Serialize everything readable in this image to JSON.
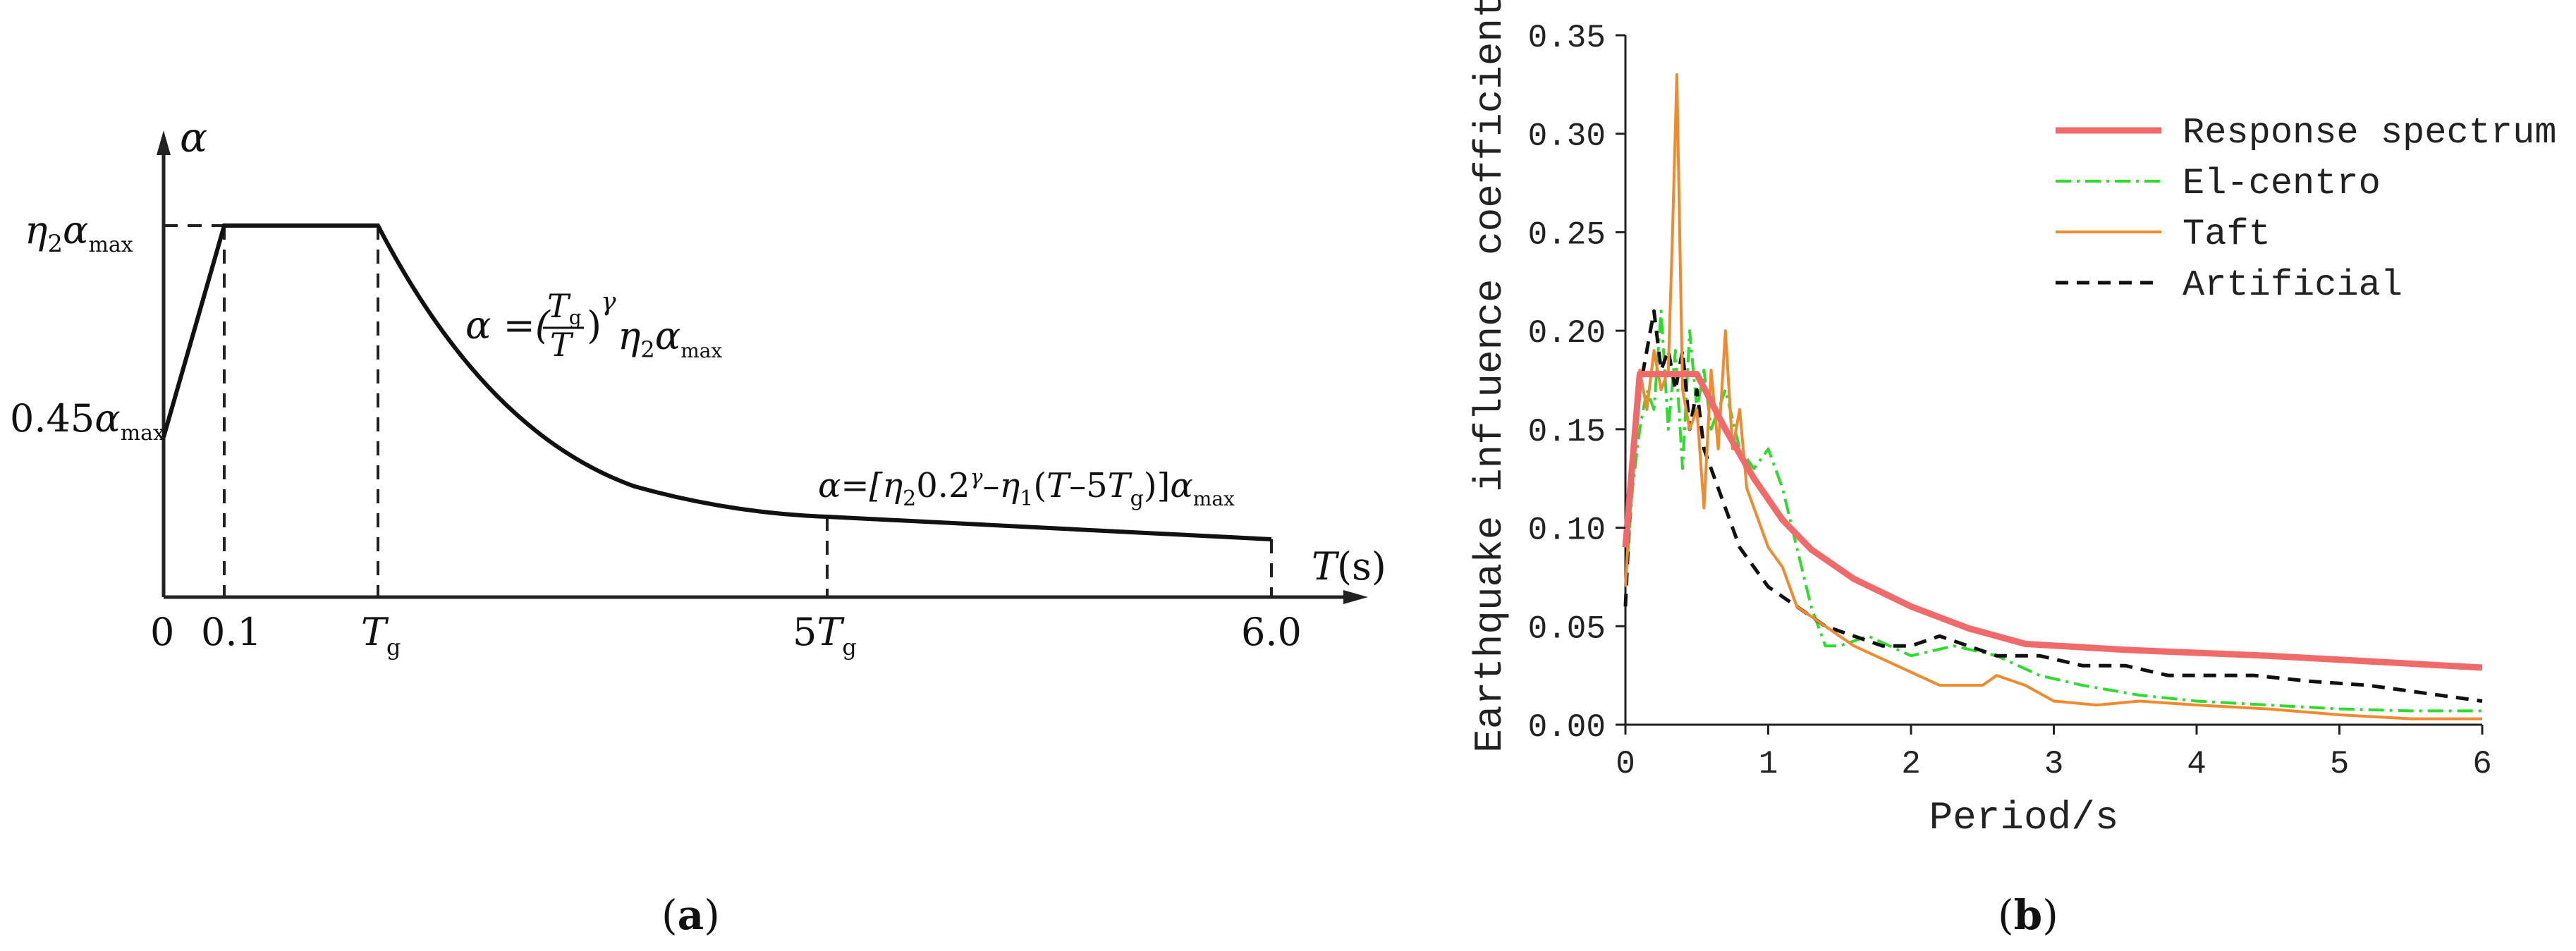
{
  "colors": {
    "response_spectrum": "#f06a6a",
    "el_centro": "#2edc2e",
    "taft": "#f08a2c",
    "artificial": "#111111",
    "axis": "#222222"
  },
  "panel_a": {
    "caption_open": "(",
    "caption_letter": "a",
    "caption_close": ")",
    "alpha_label": "α",
    "t_axis_label_T": "T",
    "t_axis_label_unit": "(s)",
    "y_ticks": {
      "top_eta": "η",
      "top_sub": "2",
      "top_alpha": "α",
      "top_alpha_sub": "max",
      "low_coef": "0.45",
      "low_alpha": "α",
      "low_alpha_sub": "max"
    },
    "x_ticks": {
      "zero": "0",
      "point_one": "0.1",
      "tg_T": "T",
      "tg_sub": "g",
      "five": "5",
      "five_T": "T",
      "five_sub": "g",
      "six": "6.0"
    },
    "formula1": {
      "lhs": "α =(",
      "num_T": "T",
      "num_sub": "g",
      "den": "T",
      "close": ")",
      "exp": "γ",
      "eta": "η",
      "eta_sub": "2",
      "alpha": "α",
      "alpha_sub": "max"
    },
    "formula2": {
      "lhs": "α=[",
      "eta2": "η",
      "eta2_sub": "2",
      "mid": "0.2",
      "gamma": "γ",
      "minus": "–",
      "eta1": "η",
      "eta1_sub": "1",
      "paren": "(",
      "T": "T",
      "minus2": "–5",
      "Tg": "T",
      "Tg_sub": "g",
      "close": ")]",
      "alpha": "α",
      "alpha_sub": "max"
    },
    "chart_data": {
      "type": "line",
      "xlabel": "T(s)",
      "ylabel": "α",
      "x_ticks": [
        "0",
        "0.1",
        "Tg",
        "5Tg",
        "6.0"
      ],
      "y_ticks": [
        "0.45αmax",
        "η2αmax"
      ],
      "segments": [
        {
          "from": "0",
          "to": "0.1",
          "shape": "linear rise",
          "start": "0.45αmax",
          "end": "η2αmax"
        },
        {
          "from": "0.1",
          "to": "Tg",
          "shape": "plateau",
          "value": "η2αmax"
        },
        {
          "from": "Tg",
          "to": "5Tg",
          "shape": "curve",
          "formula": "α=(Tg/T)^γ η2αmax"
        },
        {
          "from": "5Tg",
          "to": "6.0",
          "shape": "linear decline",
          "formula": "α=[η2 0.2^γ − η1(T−5Tg)]αmax"
        }
      ]
    }
  },
  "panel_b": {
    "caption_open": "(",
    "caption_letter": "b",
    "caption_close": ")",
    "chart_data": {
      "type": "line",
      "xlabel": "Period/s",
      "ylabel": "Earthquake influence coefficient",
      "xlim": [
        0,
        6
      ],
      "ylim": [
        0,
        0.35
      ],
      "x_ticks": [
        "0",
        "1",
        "2",
        "3",
        "4",
        "5",
        "6"
      ],
      "y_ticks": [
        "0.00",
        "0.05",
        "0.10",
        "0.15",
        "0.20",
        "0.25",
        "0.30",
        "0.35"
      ],
      "legend_position": "top-right",
      "series": [
        {
          "name": "Response spectrum",
          "style": "solid-thick",
          "x": [
            0,
            0.1,
            0.35,
            0.5,
            0.7,
            0.9,
            1.1,
            1.3,
            1.6,
            2.0,
            2.4,
            2.8,
            3.5,
            4.5,
            5.5,
            6.0
          ],
          "y": [
            0.09,
            0.178,
            0.178,
            0.178,
            0.15,
            0.125,
            0.104,
            0.089,
            0.074,
            0.06,
            0.049,
            0.041,
            0.038,
            0.035,
            0.031,
            0.029
          ]
        },
        {
          "name": "El-centro",
          "style": "dashdot",
          "x": [
            0,
            0.05,
            0.1,
            0.15,
            0.2,
            0.25,
            0.3,
            0.35,
            0.4,
            0.45,
            0.5,
            0.55,
            0.6,
            0.7,
            0.8,
            0.9,
            1.0,
            1.1,
            1.2,
            1.3,
            1.4,
            1.5,
            1.7,
            2.0,
            2.3,
            2.6,
            2.9,
            3.2,
            3.6,
            4.0,
            4.5,
            5.0,
            5.5,
            6.0
          ],
          "y": [
            0.07,
            0.12,
            0.15,
            0.17,
            0.16,
            0.21,
            0.15,
            0.19,
            0.13,
            0.2,
            0.16,
            0.18,
            0.15,
            0.17,
            0.14,
            0.13,
            0.14,
            0.12,
            0.09,
            0.06,
            0.04,
            0.04,
            0.045,
            0.035,
            0.04,
            0.035,
            0.025,
            0.02,
            0.015,
            0.012,
            0.01,
            0.008,
            0.007,
            0.007
          ]
        },
        {
          "name": "Taft",
          "style": "solid",
          "x": [
            0,
            0.05,
            0.1,
            0.15,
            0.2,
            0.25,
            0.3,
            0.33,
            0.36,
            0.4,
            0.45,
            0.5,
            0.55,
            0.6,
            0.65,
            0.7,
            0.75,
            0.8,
            0.85,
            0.9,
            1.0,
            1.1,
            1.2,
            1.4,
            1.6,
            1.9,
            2.2,
            2.5,
            2.6,
            2.8,
            3.0,
            3.3,
            3.6,
            4.0,
            4.5,
            5.0,
            5.5,
            6.0
          ],
          "y": [
            0.07,
            0.13,
            0.18,
            0.16,
            0.19,
            0.17,
            0.18,
            0.25,
            0.33,
            0.17,
            0.15,
            0.16,
            0.11,
            0.18,
            0.14,
            0.2,
            0.14,
            0.16,
            0.12,
            0.11,
            0.09,
            0.08,
            0.06,
            0.05,
            0.04,
            0.03,
            0.02,
            0.02,
            0.025,
            0.02,
            0.012,
            0.01,
            0.012,
            0.01,
            0.008,
            0.005,
            0.003,
            0.003
          ]
        },
        {
          "name": "Artificial",
          "style": "dashed",
          "x": [
            0,
            0.05,
            0.1,
            0.15,
            0.2,
            0.25,
            0.3,
            0.35,
            0.4,
            0.45,
            0.5,
            0.55,
            0.6,
            0.7,
            0.8,
            0.9,
            1.0,
            1.1,
            1.2,
            1.4,
            1.6,
            1.8,
            2.0,
            2.2,
            2.4,
            2.6,
            2.9,
            3.2,
            3.5,
            3.8,
            4.0,
            4.4,
            4.8,
            5.2,
            5.6,
            6.0
          ],
          "y": [
            0.06,
            0.14,
            0.17,
            0.19,
            0.21,
            0.18,
            0.19,
            0.17,
            0.19,
            0.15,
            0.17,
            0.14,
            0.13,
            0.11,
            0.09,
            0.08,
            0.07,
            0.065,
            0.06,
            0.05,
            0.045,
            0.04,
            0.04,
            0.045,
            0.04,
            0.035,
            0.035,
            0.03,
            0.03,
            0.025,
            0.025,
            0.025,
            0.022,
            0.02,
            0.016,
            0.012
          ]
        }
      ]
    }
  }
}
